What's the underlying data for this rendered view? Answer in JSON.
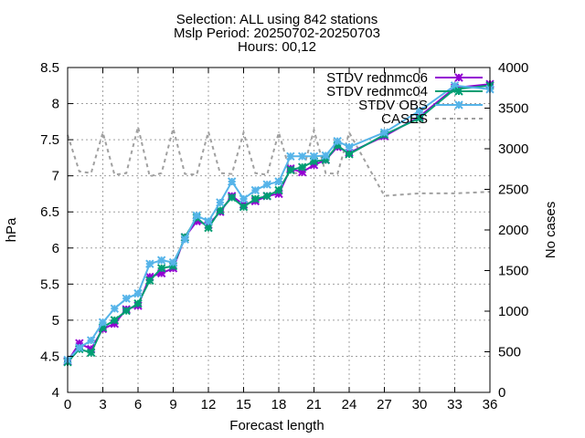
{
  "chart_data": {
    "type": "line",
    "title_lines": [
      "Selection: ALL using   842 stations",
      "Mslp   Period: 20250702-20250703",
      "Hours: 00,12"
    ],
    "xlabel": "Forecast length",
    "ylabel": "hPa",
    "y2label": "No cases",
    "xlim": [
      0,
      36
    ],
    "ylim": [
      4,
      8.5
    ],
    "y2lim": [
      0,
      4000
    ],
    "xticks": [
      0,
      3,
      6,
      9,
      12,
      15,
      18,
      21,
      24,
      27,
      30,
      33,
      36
    ],
    "yticks": [
      4,
      4.5,
      5,
      5.5,
      6,
      6.5,
      7,
      7.5,
      8,
      8.5
    ],
    "yticklabels": [
      "4",
      "4.5",
      "5",
      "5.5",
      "6",
      "6.5",
      "7",
      "7.5",
      "8",
      "8.5"
    ],
    "y2ticks": [
      0,
      500,
      1000,
      1500,
      2000,
      2500,
      3000,
      3500,
      4000
    ],
    "grid": true,
    "legend_position": "top-right",
    "x": [
      0,
      1,
      2,
      3,
      4,
      5,
      6,
      7,
      8,
      9,
      10,
      11,
      12,
      13,
      14,
      15,
      16,
      17,
      18,
      19,
      20,
      21,
      22,
      23,
      24,
      27,
      30,
      33,
      36
    ],
    "series": [
      {
        "name": "STDV rednmc06",
        "color": "#9400d3",
        "marker": "x",
        "axis": "left",
        "values": [
          4.43,
          4.68,
          4.6,
          4.88,
          4.95,
          5.15,
          5.2,
          5.6,
          5.65,
          5.72,
          6.15,
          6.37,
          6.32,
          6.5,
          6.72,
          6.6,
          6.65,
          6.72,
          6.75,
          7.1,
          7.05,
          7.15,
          7.22,
          7.4,
          7.32,
          7.55,
          7.82,
          8.22,
          8.27
        ]
      },
      {
        "name": "STDV rednmc04",
        "color": "#009e73",
        "marker": "x",
        "axis": "left",
        "values": [
          4.42,
          4.6,
          4.55,
          4.9,
          5.0,
          5.13,
          5.23,
          5.55,
          5.72,
          5.75,
          6.15,
          6.42,
          6.28,
          6.52,
          6.7,
          6.57,
          6.68,
          6.72,
          6.8,
          7.08,
          7.12,
          7.2,
          7.22,
          7.42,
          7.3,
          7.57,
          7.8,
          8.2,
          8.25
        ]
      },
      {
        "name": "STDV OBS",
        "color": "#56b4e9",
        "marker": "x",
        "axis": "left",
        "values": [
          4.45,
          4.62,
          4.72,
          4.97,
          5.16,
          5.3,
          5.37,
          5.78,
          5.83,
          5.8,
          6.12,
          6.45,
          6.37,
          6.63,
          6.92,
          6.68,
          6.8,
          6.88,
          6.92,
          7.27,
          7.27,
          7.27,
          7.28,
          7.48,
          7.4,
          7.6,
          7.9,
          8.25,
          8.2
        ]
      },
      {
        "name": "CASES",
        "color": "#a0a0a0",
        "marker": "none",
        "dash": true,
        "axis": "right",
        "values": [
          3170,
          2720,
          2700,
          3200,
          2680,
          2700,
          3270,
          2660,
          2700,
          3250,
          2690,
          2680,
          3210,
          2700,
          2690,
          3200,
          2700,
          2680,
          3200,
          2700,
          2700,
          3230,
          2700,
          2690,
          3200,
          2420,
          2450,
          2450,
          2470
        ]
      }
    ]
  }
}
